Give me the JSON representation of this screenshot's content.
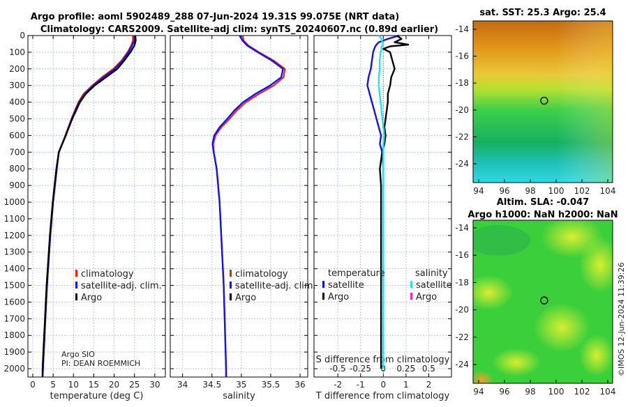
{
  "title_line1": "Argo profile: aoml 5902489_288 07-Jun-2024 19.31S 99.075E (NRT data)",
  "title_line2": "Climatology: CARS2009. Satellite-adj clim: synTS_20240607.nc (0.89d earlier)",
  "pi_line1": "Argo SIO",
  "pi_line2": "PI: DEAN ROEMMICH",
  "credit": "©IMOS 12-Jun-2024 11:39:26",
  "colors": {
    "climatology": "#ff2000",
    "satellite": "#1010ff",
    "argo": "#000000",
    "sal_satellite": "#22e5f0",
    "sal_argo": "#ff20e0",
    "grid": "#b8c4e8"
  },
  "chart_data": [
    {
      "type": "line",
      "name": "temperature",
      "xlabel": "temperature (deg C)",
      "ylabel": "depth",
      "xlim": [
        -1.2,
        32.6
      ],
      "ylim": [
        2050,
        0
      ],
      "xticks": [
        0,
        5,
        10,
        15,
        20,
        25,
        30
      ],
      "yticks": [
        0,
        100,
        200,
        300,
        400,
        500,
        600,
        700,
        800,
        900,
        1000,
        1100,
        1200,
        1300,
        1400,
        1500,
        1600,
        1700,
        1800,
        1900,
        2000
      ],
      "grid": true,
      "legend": [
        "climatology",
        "satellite-adj. clim.",
        "Argo"
      ],
      "legend_placement": "lower-right",
      "depth": [
        0,
        30,
        60,
        100,
        150,
        200,
        250,
        300,
        350,
        400,
        500,
        600,
        700,
        800,
        1000,
        1200,
        1500,
        1800,
        2000,
        2050
      ],
      "series": [
        {
          "name": "climatology",
          "color_key": "climatology",
          "values": [
            24.6,
            24.6,
            24.2,
            23.3,
            21.8,
            19.8,
            17.0,
            14.6,
            12.5,
            11.2,
            9.5,
            8.0,
            6.4,
            5.9,
            5.0,
            4.3,
            3.5,
            2.9,
            2.5,
            2.4
          ]
        },
        {
          "name": "satellite-adj. clim.",
          "color_key": "satellite",
          "values": [
            25.0,
            25.0,
            24.4,
            23.5,
            22.1,
            20.2,
            17.4,
            14.9,
            12.8,
            11.4,
            9.6,
            8.1,
            6.4,
            5.9,
            5.0,
            4.3,
            3.5,
            2.9,
            2.5,
            2.4
          ]
        },
        {
          "name": "Argo",
          "color_key": "argo",
          "values": [
            25.2,
            25.3,
            25.0,
            24.0,
            22.5,
            20.8,
            18.0,
            15.2,
            13.0,
            11.6,
            9.7,
            8.1,
            6.4,
            5.8,
            4.9,
            4.2,
            3.4,
            2.8,
            2.4,
            2.4
          ]
        }
      ]
    },
    {
      "type": "line",
      "name": "salinity",
      "xlabel": "salinity",
      "xlim": [
        33.79,
        36.13
      ],
      "ylim": [
        2050,
        0
      ],
      "xticks": [
        34,
        34.5,
        35,
        35.5,
        36
      ],
      "grid": true,
      "legend": [
        "climatology",
        "satellite-adj. clim.",
        "Argo"
      ],
      "legend_placement": "lower-right",
      "depth": [
        0,
        30,
        60,
        100,
        150,
        200,
        250,
        300,
        350,
        400,
        450,
        500,
        550,
        600,
        650,
        700,
        800,
        1000,
        1500,
        2000,
        2050
      ],
      "series": [
        {
          "name": "climatology",
          "color_key": "climatology",
          "values": [
            35.02,
            35.04,
            35.12,
            35.3,
            35.55,
            35.74,
            35.72,
            35.55,
            35.3,
            35.08,
            34.92,
            34.8,
            34.66,
            34.56,
            34.52,
            34.53,
            34.58,
            34.63,
            34.7,
            34.74,
            34.74
          ]
        },
        {
          "name": "satellite-adj. clim.",
          "color_key": "satellite",
          "values": [
            34.97,
            35.02,
            35.1,
            35.28,
            35.52,
            35.71,
            35.68,
            35.49,
            35.24,
            35.03,
            34.88,
            34.76,
            34.63,
            34.54,
            34.51,
            34.53,
            34.58,
            34.63,
            34.7,
            34.74,
            34.74
          ]
        }
      ]
    },
    {
      "type": "line",
      "name": "difference",
      "xlabel": "T difference from climatology",
      "x2label": "S difference from climatology",
      "xlim": [
        -3.05,
        3.0
      ],
      "ylim": [
        2050,
        0
      ],
      "xticks": [
        -2,
        -1,
        0,
        1,
        2
      ],
      "x2ticks": [
        "-0.5",
        "-0.25",
        "0",
        "0.25",
        "0.5"
      ],
      "x2lim": [
        -0.76,
        0.75
      ],
      "grid": true,
      "legend_temperature": {
        "title": "temperature",
        "items": [
          "satellite",
          "Argo"
        ]
      },
      "legend_salinity": {
        "title": "salinity",
        "items": [
          "satellite",
          "Argo"
        ]
      },
      "depth": [
        0,
        20,
        40,
        55,
        65,
        80,
        100,
        150,
        200,
        250,
        300,
        350,
        400,
        450,
        500,
        550,
        600,
        650,
        700,
        800,
        900,
        1000,
        1200,
        1500,
        1800,
        2000
      ],
      "series": [
        {
          "name": "T satellite",
          "color_key": "satellite",
          "axis": "T",
          "values": [
            0.7,
            0.2,
            -0.2,
            -0.3,
            -0.35,
            -0.4,
            -0.45,
            -0.5,
            -0.55,
            -0.65,
            -0.7,
            -0.6,
            -0.5,
            -0.4,
            -0.3,
            -0.2,
            -0.1,
            -0.15,
            -0.05,
            0,
            0,
            0,
            0,
            0,
            0,
            0
          ]
        },
        {
          "name": "T Argo",
          "color_key": "argo",
          "axis": "T",
          "values": [
            0.6,
            0.8,
            0.5,
            1.1,
            0.3,
            0.0,
            0.3,
            0.4,
            0.5,
            0.35,
            0.3,
            0.2,
            0.2,
            0.15,
            0.1,
            0.05,
            0.1,
            0.05,
            -0.05,
            -0.15,
            -0.1,
            -0.1,
            -0.1,
            -0.1,
            -0.1,
            -0.1
          ]
        },
        {
          "name": "S satellite",
          "color_key": "sal_satellite",
          "axis": "S",
          "values": [
            -0.05,
            -0.02,
            -0.01,
            0.0,
            -0.02,
            -0.02,
            -0.03,
            -0.04,
            -0.04,
            -0.05,
            -0.05,
            -0.04,
            -0.03,
            -0.02,
            -0.01,
            0.0,
            0.01,
            0.0,
            0.0,
            0.0,
            0.0,
            0.0,
            0.0,
            0.0,
            0.0,
            0.0
          ]
        }
      ]
    }
  ],
  "map_sst": {
    "title": "sat. SST: 25.3 Argo: 25.4",
    "lat_ticks": [
      "-14",
      "-16",
      "-18",
      "-20",
      "-22",
      "-24"
    ],
    "lon_ticks": [
      "94",
      "96",
      "98",
      "100",
      "102",
      "104"
    ],
    "argo_lon": 99.075,
    "argo_lat": -19.31
  },
  "map_sla": {
    "title1": "Altim. SLA: -0.047",
    "title2": "Argo h1000: NaN h2000: NaN",
    "lat_ticks": [
      "-14",
      "-16",
      "-18",
      "-20",
      "-22",
      "-24"
    ],
    "lon_ticks": [
      "94",
      "96",
      "98",
      "100",
      "102",
      "104"
    ],
    "argo_lon": 99.075,
    "argo_lat": -19.31
  }
}
